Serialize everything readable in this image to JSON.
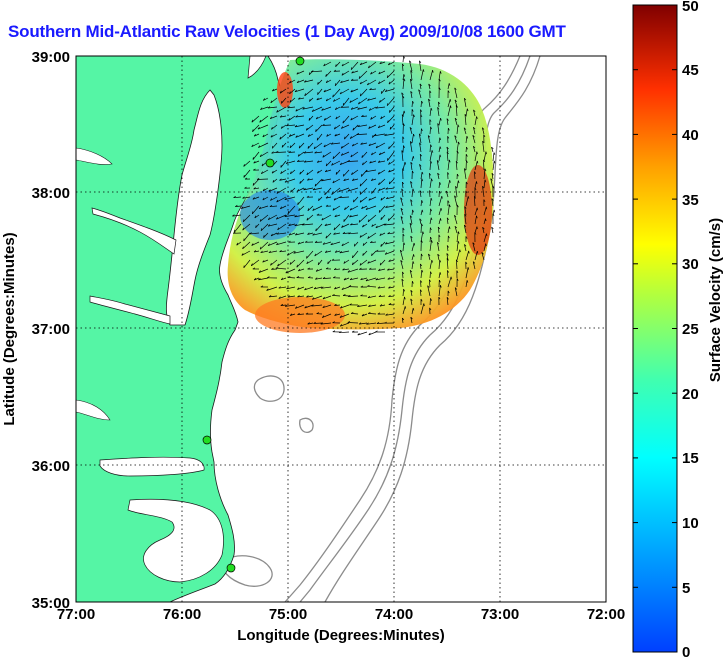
{
  "title": "Southern Mid-Atlantic Raw Velocities (1 Day Avg) 2009/10/08 1600 GMT",
  "axes": {
    "xlabel": "Longitude (Degrees:Minutes)",
    "ylabel": "Latitude (Degrees:Minutes)",
    "xticks": [
      "77:00",
      "76:00",
      "75:00",
      "74:00",
      "73:00",
      "72:00"
    ],
    "yticks": [
      "39:00",
      "38:00",
      "37:00",
      "36:00",
      "35:00"
    ],
    "xrange_deg_west": [
      77,
      72
    ],
    "yrange_deg_north": [
      35,
      39
    ],
    "grid": "dotted"
  },
  "colorbar": {
    "label": "Surface Velocity (cm/s)",
    "ticks": [
      "50",
      "45",
      "40",
      "35",
      "30",
      "25",
      "20",
      "15",
      "10",
      "5",
      "0"
    ],
    "range": [
      0,
      50
    ],
    "colormap": "jet"
  },
  "colors": {
    "land": "#55f5a5",
    "title": "#1a1aff",
    "bathymetry": "#8c8c8c",
    "station": "#22dd22"
  },
  "stations": [
    {
      "lon": -74.87,
      "lat": 38.95
    },
    {
      "lon": -75.15,
      "lat": 38.22
    },
    {
      "lon": -75.68,
      "lat": 36.18
    },
    {
      "lon": -75.47,
      "lat": 35.25
    }
  ]
}
